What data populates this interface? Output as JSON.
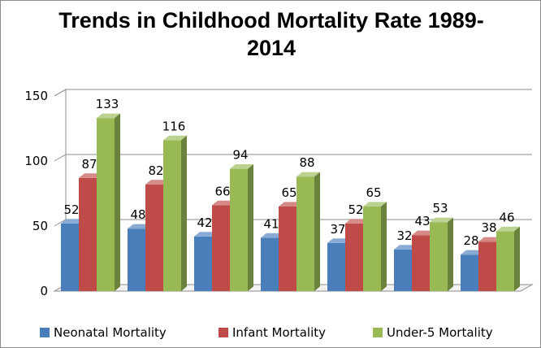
{
  "chart_data": {
    "type": "bar",
    "title_lines": [
      "Trends in Childhood Mortality Rate 1989-",
      "2014"
    ],
    "categories": [
      "",
      "",
      "",
      "",
      "",
      "",
      ""
    ],
    "series": [
      {
        "name": "Neonatal Mortality",
        "color": "#4a7ebb",
        "values": [
          52,
          48,
          42,
          41,
          37,
          32,
          28
        ]
      },
      {
        "name": "Infant Mortality",
        "color": "#be4b48",
        "values": [
          87,
          82,
          66,
          65,
          52,
          43,
          38
        ]
      },
      {
        "name": "Under-5 Mortality",
        "color": "#98b954",
        "values": [
          133,
          116,
          94,
          88,
          65,
          53,
          46
        ]
      }
    ],
    "ylim": [
      0,
      150
    ],
    "yticks": [
      0,
      50,
      100,
      150
    ],
    "xlabel": "",
    "ylabel": "",
    "grid": true,
    "legend_position": "bottom"
  }
}
